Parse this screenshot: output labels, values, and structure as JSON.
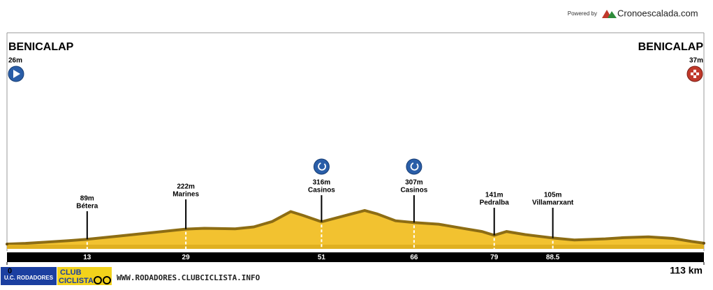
{
  "chart_data": {
    "type": "area",
    "powered_by": "Powered by",
    "brand": "Cronoescalada.com",
    "x": [
      0,
      3,
      6,
      10,
      13,
      18,
      24,
      29,
      32,
      37,
      40,
      43,
      46,
      48,
      51,
      54,
      58,
      60,
      63,
      66,
      70,
      74,
      77,
      79,
      81,
      84,
      88.5,
      92,
      97,
      100,
      104,
      108,
      111,
      113
    ],
    "values": [
      26,
      35,
      50,
      70,
      89,
      130,
      180,
      222,
      232,
      225,
      250,
      320,
      450,
      400,
      316,
      380,
      465,
      420,
      330,
      307,
      285,
      230,
      190,
      141,
      190,
      150,
      105,
      80,
      95,
      110,
      120,
      100,
      60,
      37
    ],
    "color": "#f2c230",
    "xlim": [
      0,
      113
    ],
    "ylim": [
      0,
      2800
    ],
    "xticks": [
      0,
      {
        "value": 113,
        "label": "113 km"
      }
    ],
    "endpoints": {
      "names": [
        "BENICALAP",
        "BENICALAP"
      ],
      "x": [
        0,
        113
      ],
      "values": [
        26,
        37
      ],
      "value_labels": [
        "26m",
        "37m"
      ]
    },
    "waypoints": {
      "names": [
        "Bétera",
        "Marines",
        "Casinos",
        "Casinos",
        "Pedralba",
        "Villamarxant"
      ],
      "x": [
        13,
        29,
        51,
        66,
        79,
        88.5
      ],
      "values": [
        89,
        222,
        316,
        307,
        141,
        105
      ],
      "value_labels": [
        "89m",
        "222m",
        "316m",
        "307m",
        "141m",
        "105m"
      ]
    },
    "footer": {
      "logo_top": "U.C. RODADORES",
      "logo_club": "CLUB",
      "logo_ciclista": "CICLISTA",
      "url": "WWW.RODADORES.CLUBCICLISTA.INFO"
    }
  }
}
